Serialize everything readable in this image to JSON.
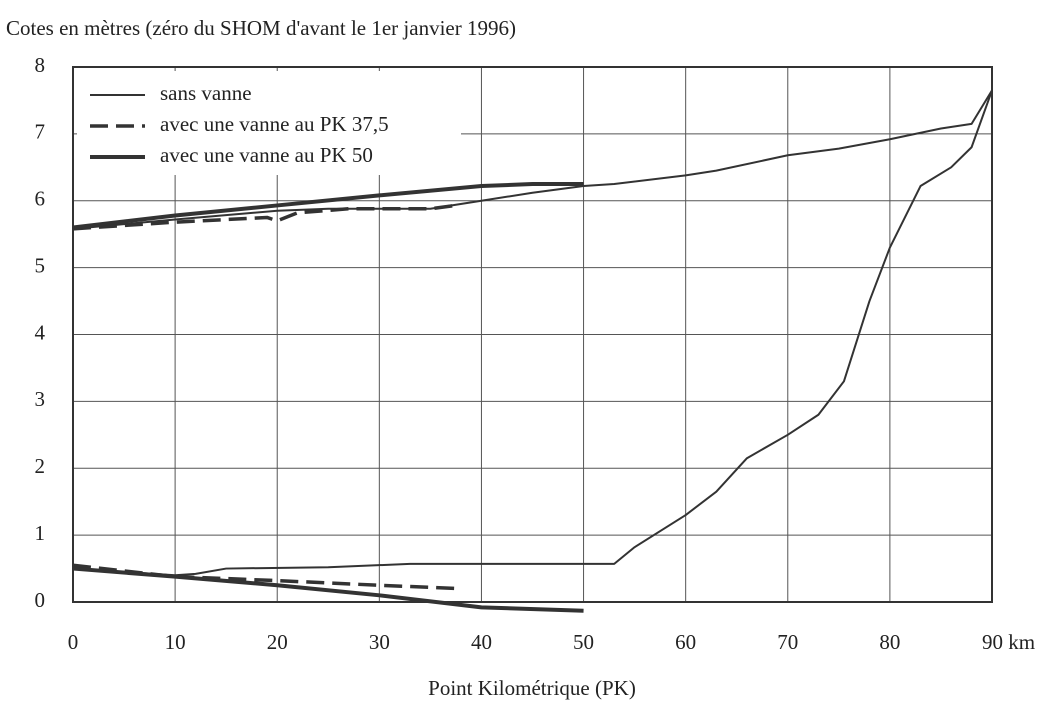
{
  "chart_data": {
    "type": "line",
    "title": "Cotes en mètres (zéro du SHOM d'avant le 1er janvier 1996)",
    "x_label": "Point Kilométrique (PK)",
    "xlim": [
      0,
      90
    ],
    "ylim": [
      0,
      8
    ],
    "xticks": [
      0,
      10,
      20,
      30,
      40,
      50,
      60,
      70,
      80,
      {
        "value": 90,
        "label": "90 km"
      }
    ],
    "yticks": [
      0,
      1,
      2,
      3,
      4,
      5,
      6,
      7,
      8
    ],
    "grid": true,
    "legend": "top-left",
    "series": [
      {
        "name": "sans vanne",
        "color": "#333333",
        "dash": "solid",
        "width": 2,
        "lines": [
          {
            "x": [
              0,
              10,
              20,
              25,
              35,
              40,
              45,
              50,
              53,
              60,
              63,
              70,
              75,
              80,
              85,
              88,
              90
            ],
            "values": [
              5.58,
              5.72,
              5.85,
              5.88,
              5.88,
              6.0,
              6.12,
              6.22,
              6.25,
              6.38,
              6.45,
              6.68,
              6.78,
              6.92,
              7.08,
              7.15,
              7.65
            ]
          },
          {
            "x": [
              0,
              10,
              12,
              15,
              25,
              33,
              53,
              55,
              60,
              63,
              66,
              70,
              73,
              75.5,
              78,
              80,
              83,
              86,
              88,
              90
            ],
            "values": [
              0.5,
              0.4,
              0.42,
              0.5,
              0.52,
              0.57,
              0.57,
              0.82,
              1.3,
              1.65,
              2.15,
              2.5,
              2.8,
              3.3,
              4.5,
              5.3,
              6.22,
              6.5,
              6.8,
              7.65
            ]
          }
        ]
      },
      {
        "name": "avec une vanne au PK 37,5",
        "color": "#333333",
        "dash": "dashed",
        "width": 3.5,
        "lines": [
          {
            "x": [
              0,
              10,
              19,
              20,
              22,
              27,
              35,
              37.5
            ],
            "values": [
              5.58,
              5.68,
              5.75,
              5.7,
              5.82,
              5.88,
              5.88,
              5.93
            ]
          },
          {
            "x": [
              0,
              10,
              20,
              30,
              38
            ],
            "values": [
              0.55,
              0.38,
              0.32,
              0.25,
              0.2
            ]
          }
        ]
      },
      {
        "name": "avec une vanne au PK 50",
        "color": "#333333",
        "dash": "solid",
        "width": 4,
        "lines": [
          {
            "x": [
              0,
              10,
              20,
              30,
              40,
              45,
              50
            ],
            "values": [
              5.6,
              5.78,
              5.93,
              6.08,
              6.22,
              6.25,
              6.25
            ]
          },
          {
            "x": [
              0,
              10,
              20,
              30,
              40,
              50
            ],
            "values": [
              0.5,
              0.38,
              0.25,
              0.1,
              -0.08,
              -0.13
            ]
          }
        ]
      }
    ]
  }
}
